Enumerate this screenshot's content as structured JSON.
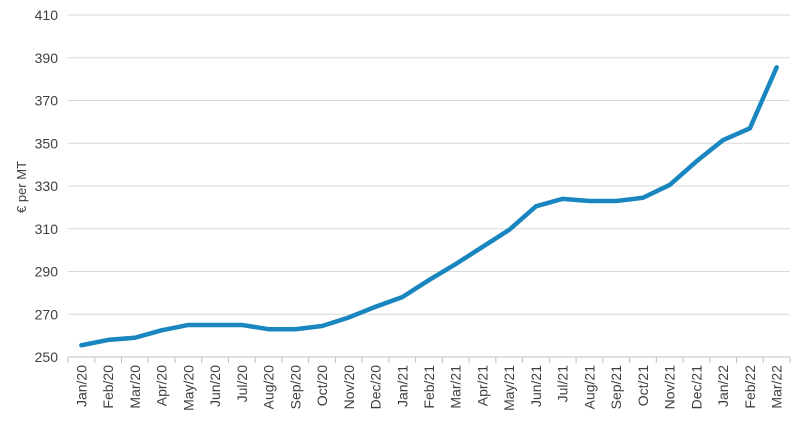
{
  "chart_data": {
    "type": "line",
    "title": "",
    "xlabel": "",
    "ylabel": "€ per MT",
    "ylim": [
      250,
      410
    ],
    "yticks": [
      250,
      270,
      290,
      310,
      330,
      350,
      370,
      390,
      410
    ],
    "grid": true,
    "legend": "none",
    "categories": [
      "Jan/20",
      "Feb/20",
      "Mar/20",
      "Apr/20",
      "May/20",
      "Jun/20",
      "Jul/20",
      "Aug/20",
      "Sep/20",
      "Oct/20",
      "Nov/20",
      "Dec/20",
      "Jan/21",
      "Feb/21",
      "Mar/21",
      "Apr/21",
      "May/21",
      "Jun/21",
      "Jul/21",
      "Aug/21",
      "Sep/21",
      "Oct/21",
      "Nov/21",
      "Dec/21",
      "Jan/22",
      "Feb/22",
      "Mar/22"
    ],
    "series": [
      {
        "color": "#1a86bf",
        "values": [
          255.5,
          258,
          259,
          262.5,
          265,
          265,
          265,
          263,
          263,
          264.5,
          268.5,
          273.5,
          278,
          286,
          293.5,
          301.5,
          309.5,
          320.5,
          324,
          323,
          323,
          324.5,
          330.5,
          341.5,
          351.5,
          357,
          385.5
        ]
      }
    ]
  }
}
